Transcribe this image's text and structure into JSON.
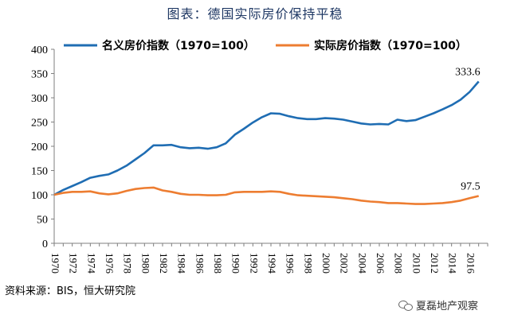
{
  "title": "图表：德国实际房价保持平稳",
  "source": "资料来源：BIS，恒大研究院",
  "watermark": "夏磊地产观察",
  "chart_data": {
    "type": "line",
    "xlim": [
      1970,
      2018
    ],
    "ylim": [
      0,
      400
    ],
    "yticks": [
      0,
      50,
      100,
      150,
      200,
      250,
      300,
      350,
      400
    ],
    "xtick_labels": [
      "1970",
      "1972",
      "1974",
      "1976",
      "1978",
      "1980",
      "1982",
      "1984",
      "1986",
      "1988",
      "1990",
      "1992",
      "1994",
      "1996",
      "1998",
      "2000",
      "2002",
      "2004",
      "2006",
      "2008",
      "2010",
      "2012",
      "2014",
      "2016"
    ],
    "legend_position": "top",
    "grid": false,
    "series": [
      {
        "name": "名义房价指数（1970=100）",
        "color": "#1f6db3",
        "x": [
          1970,
          1971,
          1972,
          1973,
          1974,
          1975,
          1976,
          1977,
          1978,
          1979,
          1980,
          1981,
          1982,
          1983,
          1984,
          1985,
          1986,
          1987,
          1988,
          1989,
          1990,
          1991,
          1992,
          1993,
          1994,
          1995,
          1996,
          1997,
          1998,
          1999,
          2000,
          2001,
          2002,
          2003,
          2004,
          2005,
          2006,
          2007,
          2008,
          2009,
          2010,
          2011,
          2012,
          2013,
          2014,
          2015,
          2016,
          2017
        ],
        "values": [
          100,
          110,
          118,
          126,
          135,
          139,
          142,
          150,
          160,
          173,
          186,
          202,
          202,
          203,
          198,
          196,
          197,
          195,
          198,
          206,
          224,
          236,
          249,
          260,
          268,
          267,
          262,
          258,
          256,
          256,
          258,
          257,
          255,
          251,
          247,
          245,
          246,
          245,
          255,
          252,
          254,
          261,
          268,
          276,
          285,
          296,
          312,
          333.6
        ]
      },
      {
        "name": "实际房价指数（1970=100）",
        "color": "#ed7d31",
        "x": [
          1970,
          1971,
          1972,
          1973,
          1974,
          1975,
          1976,
          1977,
          1978,
          1979,
          1980,
          1981,
          1982,
          1983,
          1984,
          1985,
          1986,
          1987,
          1988,
          1989,
          1990,
          1991,
          1992,
          1993,
          1994,
          1995,
          1996,
          1997,
          1998,
          1999,
          2000,
          2001,
          2002,
          2003,
          2004,
          2005,
          2006,
          2007,
          2008,
          2009,
          2010,
          2011,
          2012,
          2013,
          2014,
          2015,
          2016,
          2017
        ],
        "values": [
          100,
          104,
          106,
          106,
          107,
          103,
          101,
          103,
          108,
          112,
          114,
          115,
          109,
          106,
          102,
          100,
          100,
          99,
          99,
          100,
          105,
          106,
          106,
          106,
          107,
          106,
          102,
          99,
          98,
          97,
          96,
          95,
          93,
          91,
          88,
          86,
          85,
          83,
          83,
          82,
          81,
          81,
          82,
          83,
          85,
          88,
          93,
          97.5
        ]
      }
    ],
    "annotations": [
      {
        "text": "333.6",
        "x": 2017,
        "y": 333.6,
        "series": 0
      },
      {
        "text": "97.5",
        "x": 2017,
        "y": 97.5,
        "series": 1
      }
    ]
  }
}
